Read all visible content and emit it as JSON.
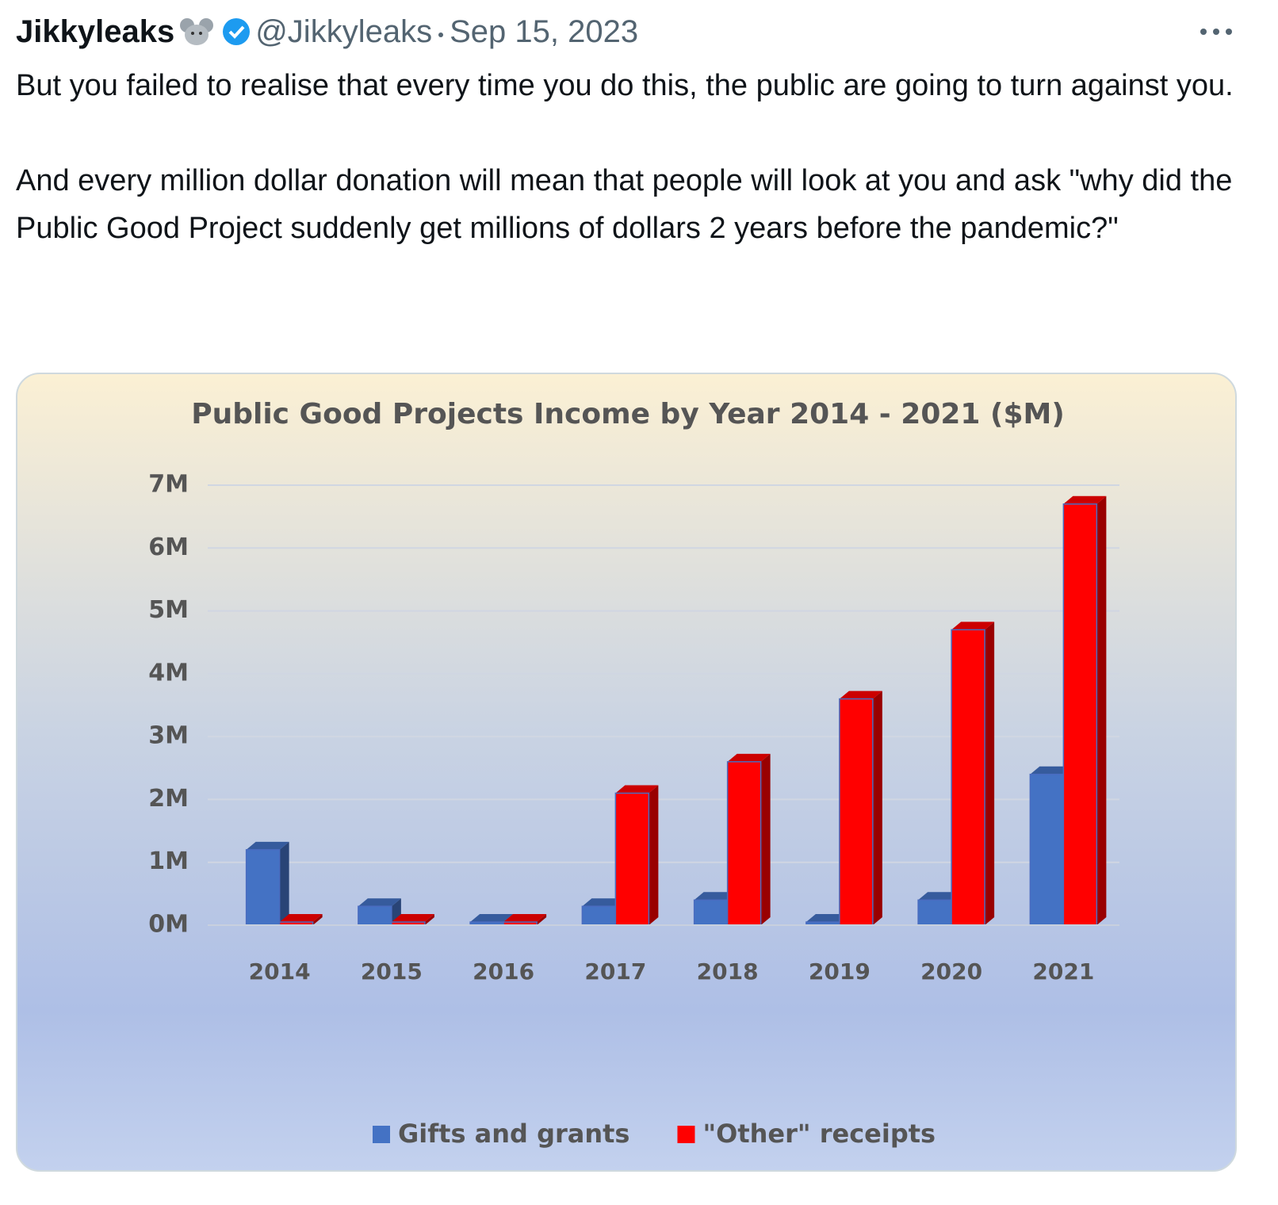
{
  "header": {
    "name": "Jikkyleaks",
    "handle": "@Jikkyleaks",
    "date": "Sep 15, 2023"
  },
  "body": {
    "paragraphs": [
      "But you failed to realise that every time you do this, the public are going to turn against you.",
      "And every million dollar donation will mean that people will look at you and ask \"why did the Public Good Project suddenly get millions of dollars 2 years before the pandemic?\""
    ]
  },
  "chart_data": {
    "type": "bar",
    "title": "Public Good Projects Income by Year 2014 - 2021 ($M)",
    "categories": [
      "2014",
      "2015",
      "2016",
      "2017",
      "2018",
      "2019",
      "2020",
      "2021"
    ],
    "series": [
      {
        "name": "Gifts and grants",
        "color": "#4472c4",
        "values": [
          1.2,
          0.3,
          0.05,
          0.3,
          0.4,
          0.05,
          0.4,
          2.4
        ]
      },
      {
        "name": "\"Other\" receipts",
        "color": "#ff0000",
        "values": [
          0.05,
          0.05,
          0.05,
          2.1,
          2.6,
          3.6,
          4.7,
          6.7
        ]
      }
    ],
    "ylim": [
      0,
      7
    ],
    "yticks": [
      {
        "value": 0,
        "label": "0M"
      },
      {
        "value": 1,
        "label": "1M"
      },
      {
        "value": 2,
        "label": "2M"
      },
      {
        "value": 3,
        "label": "3M"
      },
      {
        "value": 4,
        "label": "4M"
      },
      {
        "value": 5,
        "label": "5M"
      },
      {
        "value": 6,
        "label": "6M"
      },
      {
        "value": 7,
        "label": "7M"
      }
    ],
    "grid": true,
    "legend": "bottom"
  }
}
